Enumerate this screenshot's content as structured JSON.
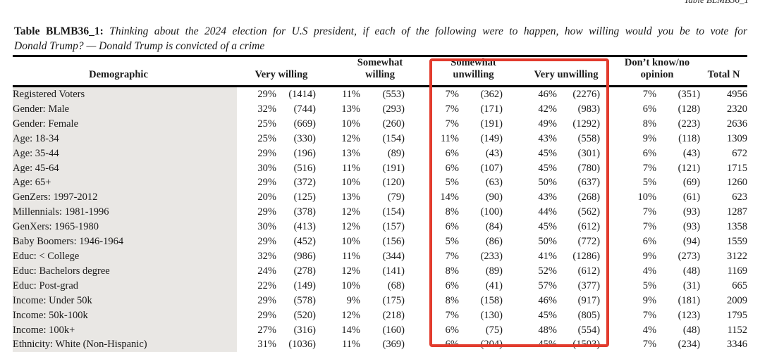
{
  "corner_note": "Table BLMB36_1",
  "title": {
    "prefix": "Table BLMB36_1:",
    "line1": "Thinking about the 2024 election for U.S president, if each of the following were to happen, how willing would you be to vote for",
    "line2": "Donald Trump? — Donald Trump is convicted of a crime"
  },
  "highlight_color": "#e23b2d",
  "table": {
    "headers": {
      "demographic": "Demographic",
      "very_willing": "Very willing",
      "somewhat_willing": "Somewhat willing",
      "somewhat_unwilling": "Somewhat unwilling",
      "very_unwilling": "Very unwilling",
      "dont_know_no_opinion": "Don’t know/no opinion",
      "total_n": "Total N"
    },
    "rows": [
      {
        "label": "Registered Voters",
        "vw_pct": "29%",
        "vw_n": "(1414)",
        "sw_pct": "11%",
        "sw_n": "(553)",
        "su_pct": "7%",
        "su_n": "(362)",
        "vu_pct": "46%",
        "vu_n": "(2276)",
        "dk_pct": "7%",
        "dk_n": "(351)",
        "total": "4956"
      },
      {
        "label": "Gender: Male",
        "vw_pct": "32%",
        "vw_n": "(744)",
        "sw_pct": "13%",
        "sw_n": "(293)",
        "su_pct": "7%",
        "su_n": "(171)",
        "vu_pct": "42%",
        "vu_n": "(983)",
        "dk_pct": "6%",
        "dk_n": "(128)",
        "total": "2320"
      },
      {
        "label": "Gender: Female",
        "vw_pct": "25%",
        "vw_n": "(669)",
        "sw_pct": "10%",
        "sw_n": "(260)",
        "su_pct": "7%",
        "su_n": "(191)",
        "vu_pct": "49%",
        "vu_n": "(1292)",
        "dk_pct": "8%",
        "dk_n": "(223)",
        "total": "2636"
      },
      {
        "label": "Age: 18-34",
        "vw_pct": "25%",
        "vw_n": "(330)",
        "sw_pct": "12%",
        "sw_n": "(154)",
        "su_pct": "11%",
        "su_n": "(149)",
        "vu_pct": "43%",
        "vu_n": "(558)",
        "dk_pct": "9%",
        "dk_n": "(118)",
        "total": "1309"
      },
      {
        "label": "Age: 35-44",
        "vw_pct": "29%",
        "vw_n": "(196)",
        "sw_pct": "13%",
        "sw_n": "(89)",
        "su_pct": "6%",
        "su_n": "(43)",
        "vu_pct": "45%",
        "vu_n": "(301)",
        "dk_pct": "6%",
        "dk_n": "(43)",
        "total": "672"
      },
      {
        "label": "Age: 45-64",
        "vw_pct": "30%",
        "vw_n": "(516)",
        "sw_pct": "11%",
        "sw_n": "(191)",
        "su_pct": "6%",
        "su_n": "(107)",
        "vu_pct": "45%",
        "vu_n": "(780)",
        "dk_pct": "7%",
        "dk_n": "(121)",
        "total": "1715"
      },
      {
        "label": "Age: 65+",
        "vw_pct": "29%",
        "vw_n": "(372)",
        "sw_pct": "10%",
        "sw_n": "(120)",
        "su_pct": "5%",
        "su_n": "(63)",
        "vu_pct": "50%",
        "vu_n": "(637)",
        "dk_pct": "5%",
        "dk_n": "(69)",
        "total": "1260"
      },
      {
        "label": "GenZers: 1997-2012",
        "vw_pct": "20%",
        "vw_n": "(125)",
        "sw_pct": "13%",
        "sw_n": "(79)",
        "su_pct": "14%",
        "su_n": "(90)",
        "vu_pct": "43%",
        "vu_n": "(268)",
        "dk_pct": "10%",
        "dk_n": "(61)",
        "total": "623"
      },
      {
        "label": "Millennials: 1981-1996",
        "vw_pct": "29%",
        "vw_n": "(378)",
        "sw_pct": "12%",
        "sw_n": "(154)",
        "su_pct": "8%",
        "su_n": "(100)",
        "vu_pct": "44%",
        "vu_n": "(562)",
        "dk_pct": "7%",
        "dk_n": "(93)",
        "total": "1287"
      },
      {
        "label": "GenXers: 1965-1980",
        "vw_pct": "30%",
        "vw_n": "(413)",
        "sw_pct": "12%",
        "sw_n": "(157)",
        "su_pct": "6%",
        "su_n": "(84)",
        "vu_pct": "45%",
        "vu_n": "(612)",
        "dk_pct": "7%",
        "dk_n": "(93)",
        "total": "1358"
      },
      {
        "label": "Baby Boomers: 1946-1964",
        "vw_pct": "29%",
        "vw_n": "(452)",
        "sw_pct": "10%",
        "sw_n": "(156)",
        "su_pct": "5%",
        "su_n": "(86)",
        "vu_pct": "50%",
        "vu_n": "(772)",
        "dk_pct": "6%",
        "dk_n": "(94)",
        "total": "1559"
      },
      {
        "label": "Educ: < College",
        "vw_pct": "32%",
        "vw_n": "(986)",
        "sw_pct": "11%",
        "sw_n": "(344)",
        "su_pct": "7%",
        "su_n": "(233)",
        "vu_pct": "41%",
        "vu_n": "(1286)",
        "dk_pct": "9%",
        "dk_n": "(273)",
        "total": "3122"
      },
      {
        "label": "Educ: Bachelors degree",
        "vw_pct": "24%",
        "vw_n": "(278)",
        "sw_pct": "12%",
        "sw_n": "(141)",
        "su_pct": "8%",
        "su_n": "(89)",
        "vu_pct": "52%",
        "vu_n": "(612)",
        "dk_pct": "4%",
        "dk_n": "(48)",
        "total": "1169"
      },
      {
        "label": "Educ: Post-grad",
        "vw_pct": "22%",
        "vw_n": "(149)",
        "sw_pct": "10%",
        "sw_n": "(68)",
        "su_pct": "6%",
        "su_n": "(41)",
        "vu_pct": "57%",
        "vu_n": "(377)",
        "dk_pct": "5%",
        "dk_n": "(31)",
        "total": "665"
      },
      {
        "label": "Income: Under 50k",
        "vw_pct": "29%",
        "vw_n": "(578)",
        "sw_pct": "9%",
        "sw_n": "(175)",
        "su_pct": "8%",
        "su_n": "(158)",
        "vu_pct": "46%",
        "vu_n": "(917)",
        "dk_pct": "9%",
        "dk_n": "(181)",
        "total": "2009"
      },
      {
        "label": "Income: 50k-100k",
        "vw_pct": "29%",
        "vw_n": "(520)",
        "sw_pct": "12%",
        "sw_n": "(218)",
        "su_pct": "7%",
        "su_n": "(130)",
        "vu_pct": "45%",
        "vu_n": "(805)",
        "dk_pct": "7%",
        "dk_n": "(123)",
        "total": "1795"
      },
      {
        "label": "Income: 100k+",
        "vw_pct": "27%",
        "vw_n": "(316)",
        "sw_pct": "14%",
        "sw_n": "(160)",
        "su_pct": "6%",
        "su_n": "(75)",
        "vu_pct": "48%",
        "vu_n": "(554)",
        "dk_pct": "4%",
        "dk_n": "(48)",
        "total": "1152"
      },
      {
        "label": "Ethnicity: White (Non-Hispanic)",
        "vw_pct": "31%",
        "vw_n": "(1036)",
        "sw_pct": "11%",
        "sw_n": "(369)",
        "su_pct": "6%",
        "su_n": "(204)",
        "vu_pct": "45%",
        "vu_n": "(1503)",
        "dk_pct": "7%",
        "dk_n": "(234)",
        "total": "3346"
      }
    ]
  }
}
